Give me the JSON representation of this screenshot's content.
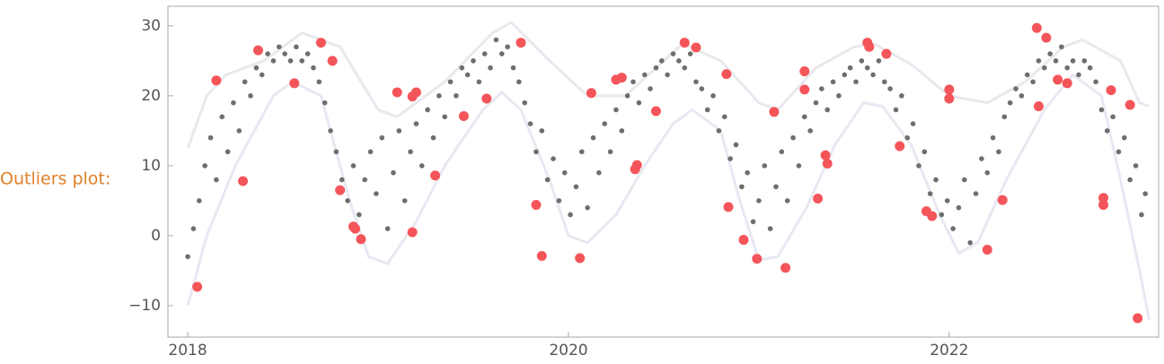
{
  "chart_data": {
    "type": "scatter",
    "label": "Outliers plot:",
    "xlim": [
      2017.896,
      2023.1
    ],
    "ylim": [
      -14.5,
      32.8
    ],
    "xticks": [
      2018,
      2020,
      2022
    ],
    "yticks": [
      {
        "value": -10,
        "label": "−10"
      },
      0,
      10,
      20,
      30
    ],
    "series": [
      {
        "type": "line",
        "color": "#e8e8ee",
        "x": [
          2018.0,
          2018.1,
          2018.2,
          2018.4,
          2018.6,
          2018.8,
          2019.0,
          2019.1,
          2019.35,
          2019.6,
          2019.7,
          2019.9,
          2020.1,
          2020.3,
          2020.5,
          2020.6,
          2020.8,
          2021.0,
          2021.1,
          2021.3,
          2021.5,
          2021.6,
          2021.8,
          2022.0,
          2022.2,
          2022.4,
          2022.6,
          2022.7,
          2022.9,
          2023.0,
          2023.05
        ],
        "values": [
          12.5,
          20,
          23,
          25,
          29,
          27,
          18,
          17,
          22,
          29,
          30.5,
          25,
          20,
          20,
          25,
          27.5,
          25,
          19,
          18,
          24,
          27,
          27.5,
          24.5,
          20,
          19,
          22,
          27,
          28,
          25,
          19,
          18.5
        ]
      },
      {
        "type": "line",
        "color": "#e8e8f2",
        "x": [
          2018.0,
          2018.1,
          2018.25,
          2018.45,
          2018.55,
          2018.7,
          2018.85,
          2018.95,
          2019.05,
          2019.2,
          2019.35,
          2019.55,
          2019.65,
          2019.75,
          2019.9,
          2020.0,
          2020.1,
          2020.25,
          2020.4,
          2020.55,
          2020.65,
          2020.8,
          2020.9,
          2021.0,
          2021.1,
          2021.25,
          2021.4,
          2021.55,
          2021.65,
          2021.8,
          2021.95,
          2022.05,
          2022.15,
          2022.3,
          2022.5,
          2022.65,
          2022.8,
          2022.9,
          2023.0,
          2023.05
        ],
        "values": [
          -10,
          0,
          10,
          20,
          22,
          20,
          5,
          -3,
          -4,
          2,
          10,
          18,
          20.5,
          18,
          8,
          0,
          -1,
          3,
          10,
          16,
          18,
          15,
          5,
          -3.5,
          -3,
          4,
          13,
          19,
          18.5,
          13,
          3,
          -2.5,
          -1,
          8,
          18,
          23,
          20,
          8,
          -5,
          -12
        ]
      },
      {
        "type": "scatter",
        "color": "#6e6e6e",
        "x": [
          2018.0,
          2018.03,
          2018.06,
          2018.09,
          2018.12,
          2018.15,
          2018.18,
          2018.21,
          2018.24,
          2018.27,
          2018.3,
          2018.33,
          2018.36,
          2018.39,
          2018.42,
          2018.45,
          2018.48,
          2018.51,
          2018.54,
          2018.57,
          2018.6,
          2018.63,
          2018.66,
          2018.69,
          2018.72,
          2018.75,
          2018.78,
          2018.81,
          2018.84,
          2018.87,
          2018.9,
          2018.93,
          2018.96,
          2018.99,
          2019.02,
          2019.05,
          2019.08,
          2019.11,
          2019.14,
          2019.17,
          2019.2,
          2019.23,
          2019.26,
          2019.29,
          2019.32,
          2019.35,
          2019.38,
          2019.41,
          2019.44,
          2019.47,
          2019.5,
          2019.53,
          2019.56,
          2019.59,
          2019.62,
          2019.65,
          2019.68,
          2019.71,
          2019.74,
          2019.77,
          2019.8,
          2019.83,
          2019.86,
          2019.89,
          2019.92,
          2019.95,
          2019.98,
          2020.01,
          2020.04,
          2020.07,
          2020.1,
          2020.13,
          2020.16,
          2020.19,
          2020.22,
          2020.25,
          2020.28,
          2020.31,
          2020.34,
          2020.37,
          2020.4,
          2020.43,
          2020.46,
          2020.49,
          2020.52,
          2020.55,
          2020.58,
          2020.61,
          2020.64,
          2020.67,
          2020.7,
          2020.73,
          2020.76,
          2020.79,
          2020.82,
          2020.85,
          2020.88,
          2020.91,
          2020.94,
          2020.97,
          2021.0,
          2021.03,
          2021.06,
          2021.09,
          2021.12,
          2021.15,
          2021.18,
          2021.21,
          2021.24,
          2021.27,
          2021.3,
          2021.33,
          2021.36,
          2021.39,
          2021.42,
          2021.45,
          2021.48,
          2021.51,
          2021.54,
          2021.57,
          2021.6,
          2021.63,
          2021.66,
          2021.69,
          2021.72,
          2021.75,
          2021.78,
          2021.81,
          2021.84,
          2021.87,
          2021.9,
          2021.93,
          2021.96,
          2021.99,
          2022.02,
          2022.05,
          2022.08,
          2022.11,
          2022.14,
          2022.17,
          2022.2,
          2022.23,
          2022.26,
          2022.29,
          2022.32,
          2022.35,
          2022.38,
          2022.41,
          2022.44,
          2022.47,
          2022.5,
          2022.53,
          2022.56,
          2022.59,
          2022.62,
          2022.65,
          2022.68,
          2022.71,
          2022.74,
          2022.77,
          2022.8,
          2022.83,
          2022.86,
          2022.89,
          2022.92,
          2022.95,
          2022.98,
          2023.01,
          2023.03
        ],
        "values": [
          -3,
          1,
          5,
          10,
          14,
          8,
          17,
          12,
          19,
          15,
          22,
          20,
          24,
          23,
          26,
          25,
          27,
          26,
          25,
          27,
          25,
          26,
          24,
          22,
          19,
          15,
          12,
          8,
          5,
          10,
          3,
          8,
          12,
          6,
          14,
          1,
          9,
          15,
          5,
          12,
          16,
          10,
          18,
          14,
          20,
          17,
          22,
          20,
          24,
          23,
          25,
          22,
          26,
          24,
          28,
          26,
          27,
          24,
          22,
          19,
          16,
          12,
          15,
          8,
          11,
          5,
          9,
          3,
          7,
          12,
          4,
          14,
          9,
          16,
          12,
          18,
          15,
          20,
          22,
          19,
          23,
          21,
          24,
          25,
          23,
          26,
          25,
          24,
          26,
          22,
          21,
          18,
          20,
          15,
          17,
          11,
          13,
          7,
          9,
          2,
          5,
          10,
          1,
          7,
          12,
          5,
          14,
          10,
          17,
          15,
          19,
          21,
          18,
          22,
          20,
          23,
          24,
          22,
          25,
          24,
          23,
          25,
          22,
          21,
          18,
          20,
          14,
          16,
          10,
          12,
          6,
          8,
          3,
          5,
          1,
          4,
          8,
          -1,
          6,
          11,
          9,
          14,
          12,
          17,
          19,
          21,
          20,
          23,
          22,
          25,
          24,
          26,
          25,
          27,
          24,
          25,
          23,
          25,
          24,
          22,
          18,
          15,
          17,
          12,
          14,
          8,
          10,
          3,
          6
        ]
      },
      {
        "type": "scatter",
        "color": "#f4555a",
        "x": [
          2018.05,
          2018.15,
          2018.29,
          2018.37,
          2018.56,
          2018.7,
          2018.76,
          2018.8,
          2018.87,
          2018.88,
          2018.91,
          2019.1,
          2019.18,
          2019.18,
          2019.2,
          2019.3,
          2019.45,
          2019.57,
          2019.75,
          2019.83,
          2019.86,
          2020.06,
          2020.12,
          2020.25,
          2020.28,
          2020.35,
          2020.36,
          2020.46,
          2020.61,
          2020.67,
          2020.83,
          2020.84,
          2020.92,
          2020.99,
          2021.08,
          2021.14,
          2021.24,
          2021.24,
          2021.31,
          2021.35,
          2021.36,
          2021.57,
          2021.58,
          2021.67,
          2021.74,
          2021.88,
          2021.91,
          2022.0,
          2022.0,
          2022.2,
          2022.28,
          2022.47,
          2022.46,
          2022.51,
          2022.57,
          2022.62,
          2022.85,
          2022.81,
          2022.81,
          2022.95,
          2022.99
        ],
        "values": [
          -7.3,
          22.2,
          7.8,
          26.5,
          21.8,
          27.6,
          25,
          6.5,
          1.3,
          1,
          -0.5,
          20.5,
          0.5,
          19.9,
          20.5,
          8.6,
          17.1,
          19.6,
          27.6,
          4.4,
          -2.9,
          -3.2,
          20.4,
          22.3,
          22.6,
          9.5,
          10.1,
          17.8,
          27.6,
          26.9,
          23.1,
          4.1,
          -0.6,
          -3.3,
          17.7,
          -4.6,
          23.5,
          20.9,
          5.3,
          11.5,
          10.3,
          27.6,
          27,
          26,
          12.8,
          3.5,
          2.8,
          20.9,
          19.6,
          -2,
          5.1,
          18.5,
          29.7,
          28.3,
          22.3,
          21.8,
          20.8,
          5.4,
          4.4,
          18.7,
          -11.8
        ]
      }
    ]
  }
}
